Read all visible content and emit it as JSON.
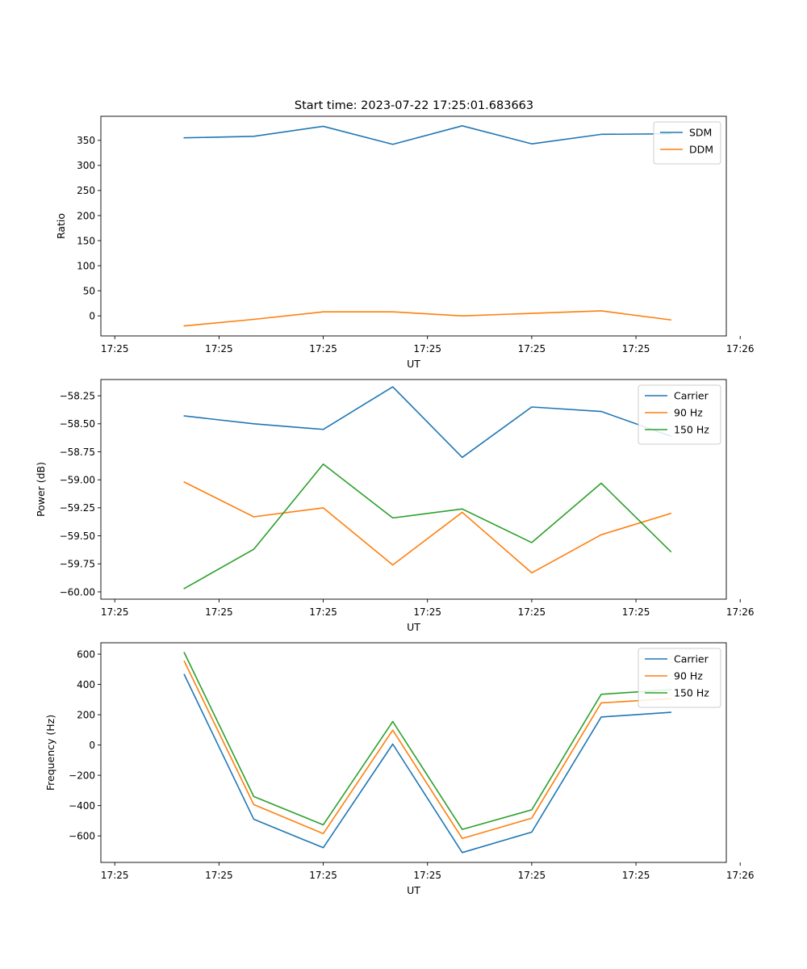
{
  "figure": {
    "title": "Start time: 2023-07-22 17:25:01.683663"
  },
  "chart_data": [
    {
      "type": "line",
      "title": "Start time: 2023-07-22 17:25:01.683663",
      "xlabel": "UT",
      "ylabel": "Ratio",
      "x_tick_labels": [
        "17:25",
        "17:25",
        "17:25",
        "17:25",
        "17:25",
        "17:25",
        "17:26"
      ],
      "xlim": [
        -0.2,
        8.8
      ],
      "x": [
        1,
        2,
        3,
        4,
        5,
        6,
        7,
        8
      ],
      "ylim": [
        -40,
        398
      ],
      "y_ticks": [
        0,
        50,
        100,
        150,
        200,
        250,
        300,
        350
      ],
      "y_tick_labels": [
        "0",
        "50",
        "100",
        "150",
        "200",
        "250",
        "300",
        "350"
      ],
      "legend_position": "top-right",
      "series": [
        {
          "name": "SDM",
          "color": "#1f77b4",
          "values": [
            355,
            358,
            378,
            342,
            379,
            343,
            362,
            363
          ]
        },
        {
          "name": "DDM",
          "color": "#ff7f0e",
          "values": [
            -20,
            -7,
            8,
            8,
            0,
            5,
            10,
            -8
          ]
        }
      ]
    },
    {
      "type": "line",
      "title": "",
      "xlabel": "UT",
      "ylabel": "Power (dB)",
      "x_tick_labels": [
        "17:25",
        "17:25",
        "17:25",
        "17:25",
        "17:25",
        "17:25",
        "17:26"
      ],
      "xlim": [
        -0.2,
        8.8
      ],
      "x": [
        1,
        2,
        3,
        4,
        5,
        6,
        7,
        8
      ],
      "ylim": [
        -60.065,
        -58.105
      ],
      "y_ticks": [
        -60.0,
        -59.75,
        -59.5,
        -59.25,
        -59.0,
        -58.75,
        -58.5,
        -58.25
      ],
      "y_tick_labels": [
        "−60.00",
        "−59.75",
        "−59.50",
        "−59.25",
        "−59.00",
        "−58.75",
        "−58.50",
        "−58.25"
      ],
      "legend_position": "top-right",
      "series": [
        {
          "name": "Carrier",
          "color": "#1f77b4",
          "values": [
            -58.43,
            -58.5,
            -58.55,
            -58.17,
            -58.8,
            -58.35,
            -58.39,
            -58.61
          ]
        },
        {
          "name": "90 Hz",
          "color": "#ff7f0e",
          "values": [
            -59.02,
            -59.33,
            -59.25,
            -59.76,
            -59.29,
            -59.83,
            -59.49,
            -59.3
          ]
        },
        {
          "name": "150 Hz",
          "color": "#2ca02c",
          "values": [
            -59.97,
            -59.62,
            -58.86,
            -59.34,
            -59.26,
            -59.56,
            -59.03,
            -59.64
          ]
        }
      ]
    },
    {
      "type": "line",
      "title": "",
      "xlabel": "UT",
      "ylabel": "Frequency (Hz)",
      "x_tick_labels": [
        "17:25",
        "17:25",
        "17:25",
        "17:25",
        "17:25",
        "17:25",
        "17:26"
      ],
      "xlim": [
        -0.2,
        8.8
      ],
      "x": [
        1,
        2,
        3,
        4,
        5,
        6,
        7,
        8
      ],
      "ylim": [
        -775,
        675
      ],
      "y_ticks": [
        -600,
        -400,
        -200,
        0,
        200,
        400,
        600
      ],
      "y_tick_labels": [
        "−600",
        "−400",
        "−200",
        "0",
        "200",
        "400",
        "600"
      ],
      "legend_position": "top-right",
      "series": [
        {
          "name": "Carrier",
          "color": "#1f77b4",
          "values": [
            465,
            -490,
            -678,
            6,
            -710,
            -575,
            185,
            216
          ]
        },
        {
          "name": "90 Hz",
          "color": "#ff7f0e",
          "values": [
            553,
            -393,
            -585,
            98,
            -617,
            -483,
            278,
            306
          ]
        },
        {
          "name": "150 Hz",
          "color": "#2ca02c",
          "values": [
            610,
            -340,
            -527,
            155,
            -557,
            -428,
            335,
            365
          ]
        }
      ]
    }
  ]
}
